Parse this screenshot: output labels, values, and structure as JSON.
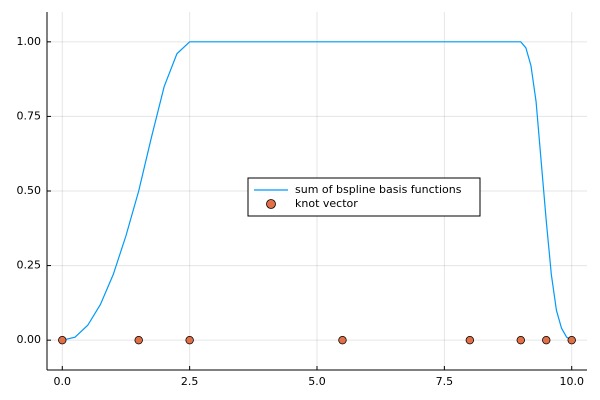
{
  "chart_data": {
    "type": "line",
    "xlim": [
      -0.3,
      10.3
    ],
    "ylim": [
      -0.1,
      1.1
    ],
    "xticks": [
      {
        "value": 0,
        "label": "0.0"
      },
      {
        "value": 2.5,
        "label": "2.5"
      },
      {
        "value": 5,
        "label": "5.0"
      },
      {
        "value": 7.5,
        "label": "7.5"
      },
      {
        "value": 10,
        "label": "10.0"
      }
    ],
    "yticks": [
      {
        "value": 0,
        "label": "0.00"
      },
      {
        "value": 0.25,
        "label": "0.25"
      },
      {
        "value": 0.5,
        "label": "0.50"
      },
      {
        "value": 0.75,
        "label": "0.75"
      },
      {
        "value": 1,
        "label": "1.00"
      }
    ],
    "grid": true,
    "legend": "center",
    "series": [
      {
        "name": "sum of bspline basis functions",
        "type": "line",
        "color": "#009af9",
        "x": [
          0,
          0.25,
          0.5,
          0.75,
          1.0,
          1.25,
          1.5,
          1.75,
          2.0,
          2.25,
          2.5,
          9.0,
          9.1,
          9.2,
          9.3,
          9.4,
          9.5,
          9.6,
          9.7,
          9.8,
          9.9,
          10.0
        ],
        "values": [
          0,
          0.01,
          0.05,
          0.12,
          0.22,
          0.35,
          0.5,
          0.68,
          0.85,
          0.96,
          1.0,
          1.0,
          0.98,
          0.92,
          0.8,
          0.6,
          0.4,
          0.22,
          0.1,
          0.04,
          0.01,
          0
        ]
      },
      {
        "name": "knot vector",
        "type": "scatter",
        "color": "#e26f46",
        "x": [
          0,
          1.5,
          2.5,
          5.5,
          8,
          9,
          9.5,
          10
        ],
        "values": [
          0,
          0,
          0,
          0,
          0,
          0,
          0,
          0
        ]
      }
    ]
  }
}
